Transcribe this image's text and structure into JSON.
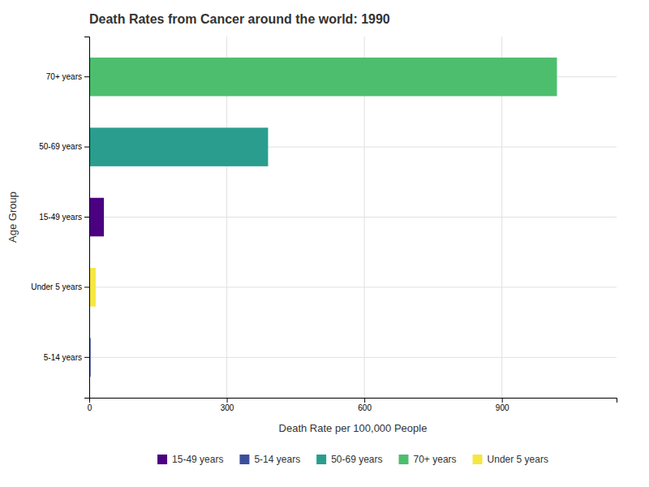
{
  "chart_data": {
    "type": "bar",
    "orientation": "horizontal",
    "title": "Death Rates from Cancer around the world: 1990",
    "x_label": "Death Rate per 100,000 People",
    "y_label": "Age Group",
    "categories": [
      "5-14 years",
      "Under 5 years",
      "15-49 years",
      "50-69 years",
      "70+ years"
    ],
    "values": [
      3,
      14,
      32,
      390,
      1020
    ],
    "colors": [
      "#3b4f9c",
      "#f5e642",
      "#4b0082",
      "#2a9d8f",
      "#4dbe6e"
    ],
    "xlim": [
      0,
      1150
    ],
    "xticks": [
      0,
      300,
      600,
      900
    ],
    "grid": true,
    "legend": "bottom",
    "legend_labels": [
      "15-49 years",
      "5-14 years",
      "50-69 years",
      "70+ years",
      "Under 5 years"
    ],
    "legend_colors": [
      "#4b0082",
      "#3b4f9c",
      "#2a9d8f",
      "#4dbe6e",
      "#f5e642"
    ]
  }
}
